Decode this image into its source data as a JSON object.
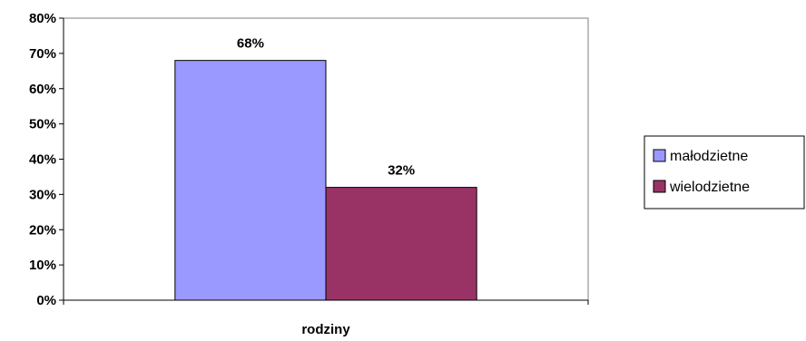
{
  "chart_data": {
    "type": "bar",
    "categories": [
      "rodziny"
    ],
    "series": [
      {
        "name": "małodzietne",
        "values": [
          68
        ],
        "color": "#9999ff"
      },
      {
        "name": "wielodzietne",
        "values": [
          32
        ],
        "color": "#993366"
      }
    ],
    "data_labels": [
      "68%",
      "32%"
    ],
    "y_ticks": [
      "0%",
      "10%",
      "20%",
      "30%",
      "40%",
      "50%",
      "60%",
      "70%",
      "80%"
    ],
    "ylim": [
      0,
      80
    ],
    "y_unit": "%",
    "title": "",
    "xlabel": "",
    "ylabel": "",
    "grid": false,
    "legend_position": "right",
    "plot_background": "#ffffff"
  }
}
